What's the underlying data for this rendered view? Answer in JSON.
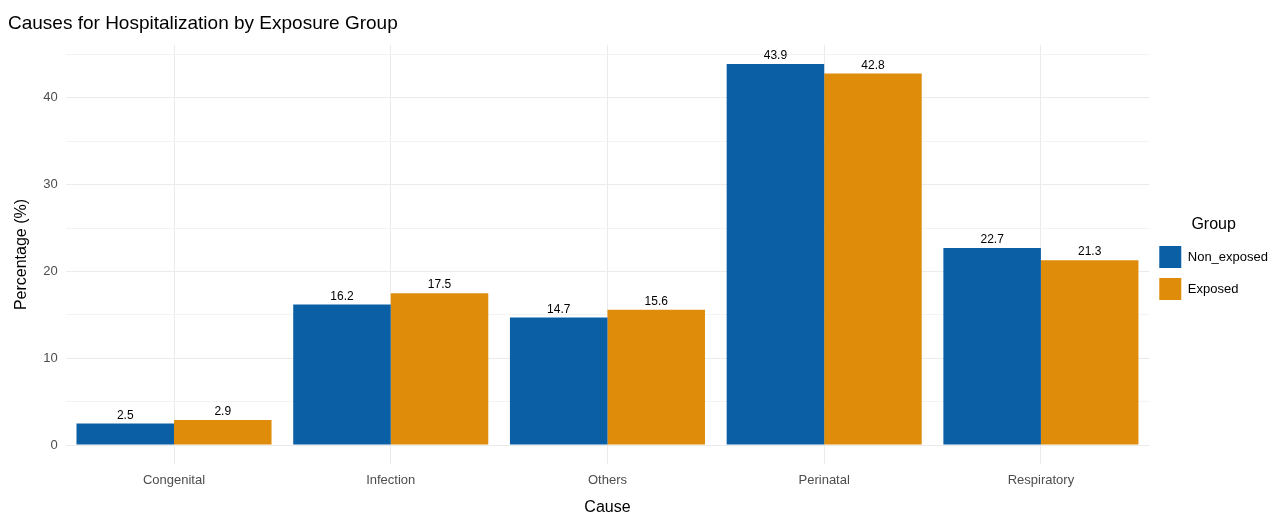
{
  "chart_data": {
    "type": "bar",
    "title": "Causes for Hospitalization by Exposure Group",
    "xlabel": "Cause",
    "ylabel": "Percentage (%)",
    "legend_title": "Group",
    "categories": [
      "Congenital",
      "Infection",
      "Others",
      "Perinatal",
      "Respiratory"
    ],
    "series": [
      {
        "name": "Non_exposed",
        "color": "#0b5fa5",
        "values": [
          2.5,
          16.2,
          14.7,
          43.9,
          22.7
        ]
      },
      {
        "name": "Exposed",
        "color": "#de8c0a",
        "values": [
          2.9,
          17.5,
          15.6,
          42.8,
          21.3
        ]
      }
    ],
    "ylim": [
      -2.2,
      46.1
    ],
    "yticks": [
      0,
      {
        "value": 5,
        "label": null
      },
      10,
      {
        "value": 15,
        "label": null
      },
      20,
      {
        "value": 25,
        "label": null
      },
      30,
      {
        "value": 35,
        "label": null
      },
      40,
      {
        "value": 45,
        "label": null
      }
    ],
    "grid": true,
    "legend": "right",
    "data_labels": true
  }
}
